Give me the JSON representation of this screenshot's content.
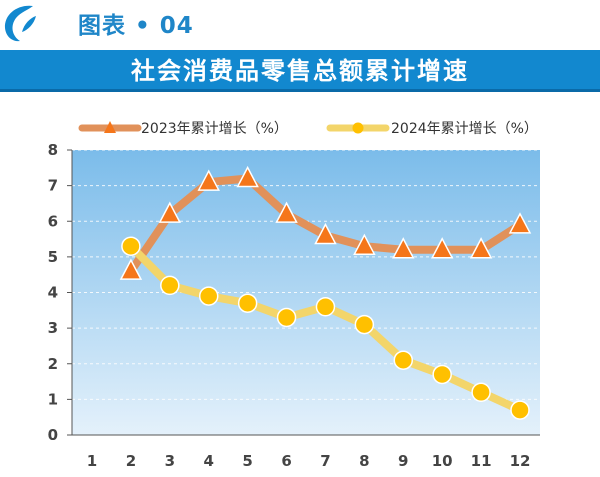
{
  "header": {
    "figure_label": "图表 • 04",
    "title": "社会消费品零售总额累计增速"
  },
  "colors": {
    "brand_blue": "#1288cf",
    "series_2023_line": "#e1915a",
    "series_2023_marker": "#f5761a",
    "series_2024_line": "#f3d56a",
    "series_2024_marker": "#ffc000",
    "plot_bg_top": "#7bbcea",
    "plot_bg_bottom": "#e4f1fb"
  },
  "chart_data": {
    "type": "line",
    "x": [
      1,
      2,
      3,
      4,
      5,
      6,
      7,
      8,
      9,
      10,
      11,
      12
    ],
    "x_tick_labels": [
      "1",
      "2",
      "3",
      "4",
      "5",
      "6",
      "7",
      "8",
      "9",
      "10",
      "11",
      "12"
    ],
    "y_tick_labels": [
      "0",
      "1",
      "2",
      "3",
      "4",
      "5",
      "6",
      "7",
      "8"
    ],
    "ylim": [
      0,
      8
    ],
    "grid": true,
    "legend_position": "top",
    "series": [
      {
        "name": "2023年累计增长（%）",
        "marker": "triangle",
        "x": [
          2,
          3,
          4,
          5,
          6,
          7,
          8,
          9,
          10,
          11,
          12
        ],
        "values": [
          4.6,
          6.2,
          7.1,
          7.2,
          6.2,
          5.6,
          5.3,
          5.2,
          5.2,
          5.2,
          5.9
        ]
      },
      {
        "name": "2024年累计增长（%）",
        "marker": "circle",
        "x": [
          2,
          3,
          4,
          5,
          6,
          7,
          8,
          9,
          10,
          11,
          12
        ],
        "values": [
          5.3,
          4.2,
          3.9,
          3.7,
          3.3,
          3.6,
          3.1,
          2.1,
          1.7,
          1.2,
          0.7
        ]
      }
    ]
  }
}
